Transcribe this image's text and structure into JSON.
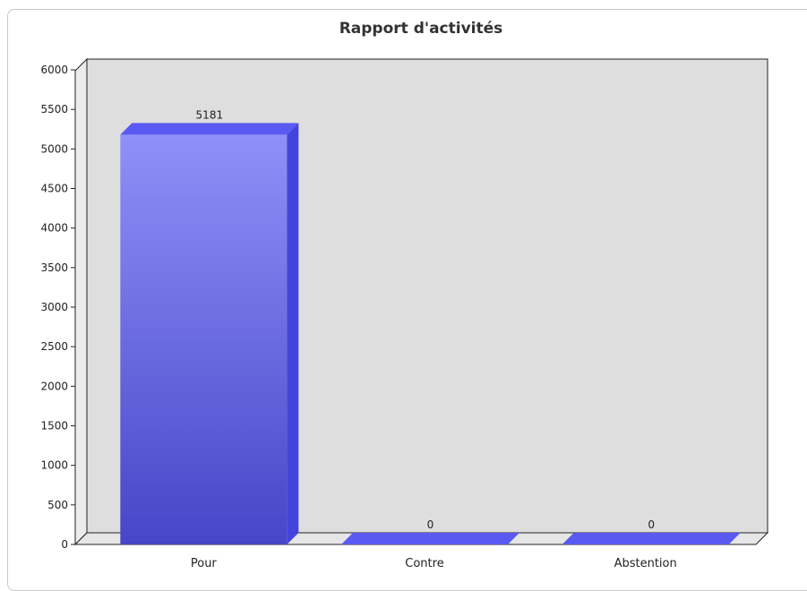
{
  "chart_data": {
    "type": "bar",
    "title": "Rapport d'activités",
    "categories": [
      "Pour",
      "Contre",
      "Abstention"
    ],
    "values": [
      5181,
      0,
      0
    ],
    "ylim": [
      0,
      6000
    ],
    "yticks": [
      0,
      500,
      1000,
      1500,
      2000,
      2500,
      3000,
      3500,
      4000,
      4500,
      5000,
      5500,
      6000
    ],
    "data_labels": [
      "5181",
      "0",
      "0"
    ],
    "style": "3d",
    "grid": false,
    "legend": "none",
    "colors": {
      "bar_top": "#9090f8",
      "bar_bottom": "#4646c8",
      "bar_side": "#4444dd",
      "bar_cap": "#5a5af2",
      "plot_bg": "#dedede",
      "floor": "#e6e6e6"
    }
  }
}
